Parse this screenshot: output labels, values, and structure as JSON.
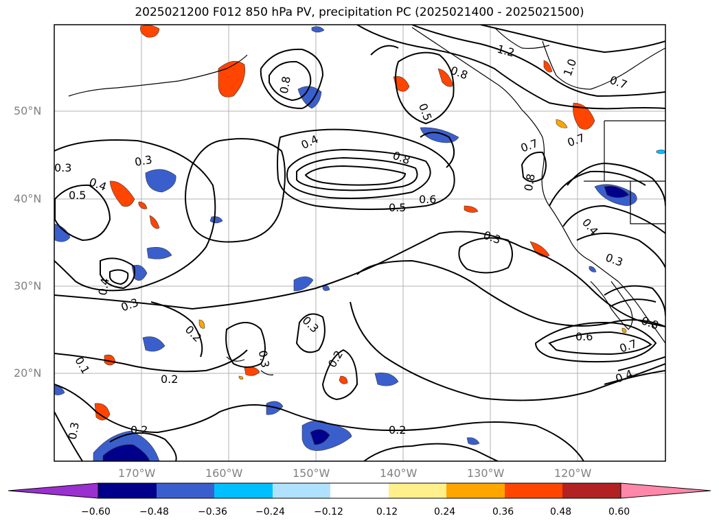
{
  "title": "2025021200 F012 850 hPa PV, precipitation PC (2025021400 - 2025021500)",
  "lat_labels": [
    "50°N",
    "40°N",
    "30°N",
    "20°N"
  ],
  "lon_labels": [
    "170°W",
    "160°W",
    "150°W",
    "140°W",
    "130°W",
    "120°W"
  ],
  "contour_labels": [
    "1.2",
    "1.0",
    "0.8",
    "0.8",
    "0.5",
    "0.7",
    "0.4",
    "0.8",
    "0.7",
    "0.7",
    "0.6",
    "0.5",
    "0.8",
    "0.3",
    "0.3",
    "0.3",
    "0.5",
    "0.4",
    "0.4",
    "0.3",
    "0.2",
    "0.3",
    "0.3",
    "0.2",
    "0.2",
    "0.1",
    "0.3",
    "0.2",
    "0.2",
    "0.4",
    "0.6",
    "0.7",
    "0.8",
    "0.4",
    "0.3"
  ],
  "colorbar": {
    "ticks": [
      "−0.60",
      "−0.48",
      "−0.36",
      "−0.24",
      "−0.12",
      "0.12",
      "0.24",
      "0.36",
      "0.48",
      "0.60"
    ],
    "colors": [
      "#9b30d0",
      "#00008b",
      "#3a5fcd",
      "#00bfff",
      "#b0e2ff",
      "#ffffff",
      "#fff08c",
      "#ffa500",
      "#ff4500",
      "#b22222",
      "#ff88aa"
    ]
  }
}
